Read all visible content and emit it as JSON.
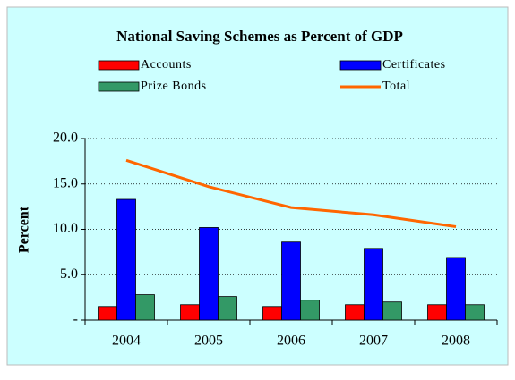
{
  "chart_data": {
    "type": "bar",
    "title": "National Saving Schemes as Percent of GDP",
    "y_label": "Percent",
    "categories": [
      "2004",
      "2005",
      "2006",
      "2007",
      "2008"
    ],
    "series": [
      {
        "name": "Accounts",
        "color": "#ff0000",
        "values": [
          1.5,
          1.7,
          1.5,
          1.7,
          1.7
        ]
      },
      {
        "name": "Certificates",
        "color": "#0000ff",
        "values": [
          13.3,
          10.2,
          8.6,
          7.9,
          6.9
        ]
      },
      {
        "name": "Prize Bonds",
        "color": "#339966",
        "values": [
          2.8,
          2.6,
          2.2,
          2.0,
          1.7
        ]
      },
      {
        "name": "Total",
        "color": "#ff6600",
        "type": "line",
        "values": [
          17.6,
          14.7,
          12.4,
          11.6,
          10.3
        ]
      }
    ],
    "ylim": [
      0,
      20
    ],
    "yticks": [
      {
        "value": 0,
        "label": "-"
      },
      {
        "value": 5,
        "label": "5.0"
      },
      {
        "value": 10,
        "label": "10.0"
      },
      {
        "value": 15,
        "label": "15.0"
      },
      {
        "value": 20,
        "label": "20.0"
      }
    ],
    "grid": true
  }
}
